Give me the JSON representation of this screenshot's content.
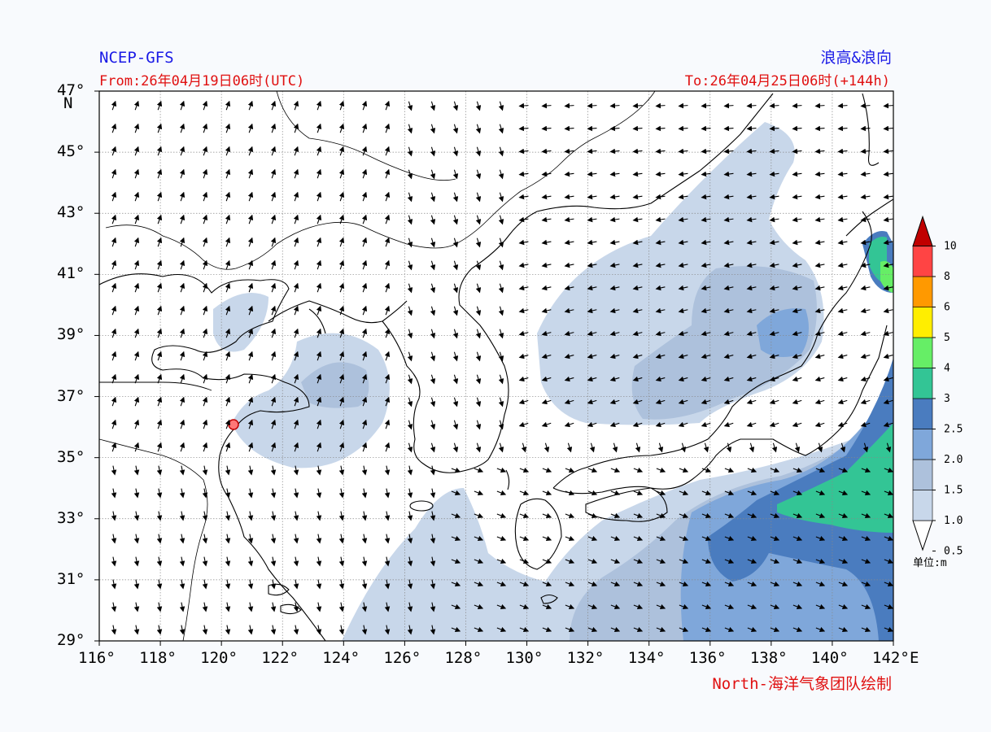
{
  "header": {
    "source": "NCEP-GFS",
    "product": "浪高&浪向",
    "from": "From:26年04月19日06时(UTC)",
    "to": "To:26年04月25日06时(+144h)",
    "credit": "North-海洋气象团队绘制"
  },
  "axes": {
    "lat_ticks": [
      "47°",
      "45°",
      "43°",
      "41°",
      "39°",
      "37°",
      "35°",
      "33°",
      "31°",
      "29°"
    ],
    "lat_unit": "N",
    "lon_ticks": [
      "116°",
      "118°",
      "120°",
      "122°",
      "124°",
      "126°",
      "128°",
      "130°",
      "132°",
      "134°",
      "136°",
      "138°",
      "140°",
      "142°"
    ],
    "lon_unit": "E",
    "lon_range": [
      116,
      142
    ],
    "lat_range": [
      29,
      47
    ]
  },
  "legend": {
    "levels": [
      "0.5",
      "1.0",
      "1.5",
      "2.0",
      "2.5",
      "3",
      "4",
      "5",
      "6",
      "8",
      "10"
    ],
    "colors": [
      "#ffffff",
      "#c8d7ea",
      "#adc1dc",
      "#7fa7da",
      "#4a7cbf",
      "#33c595",
      "#66ee66",
      "#ffee00",
      "#ff9900",
      "#ff4444",
      "#c00000"
    ],
    "unit": "单位:m"
  },
  "colors": {
    "land": "#ffffff",
    "sea_calm": "#ffffff",
    "title_blue": "#1a1ae6",
    "title_red": "#e01010"
  }
}
